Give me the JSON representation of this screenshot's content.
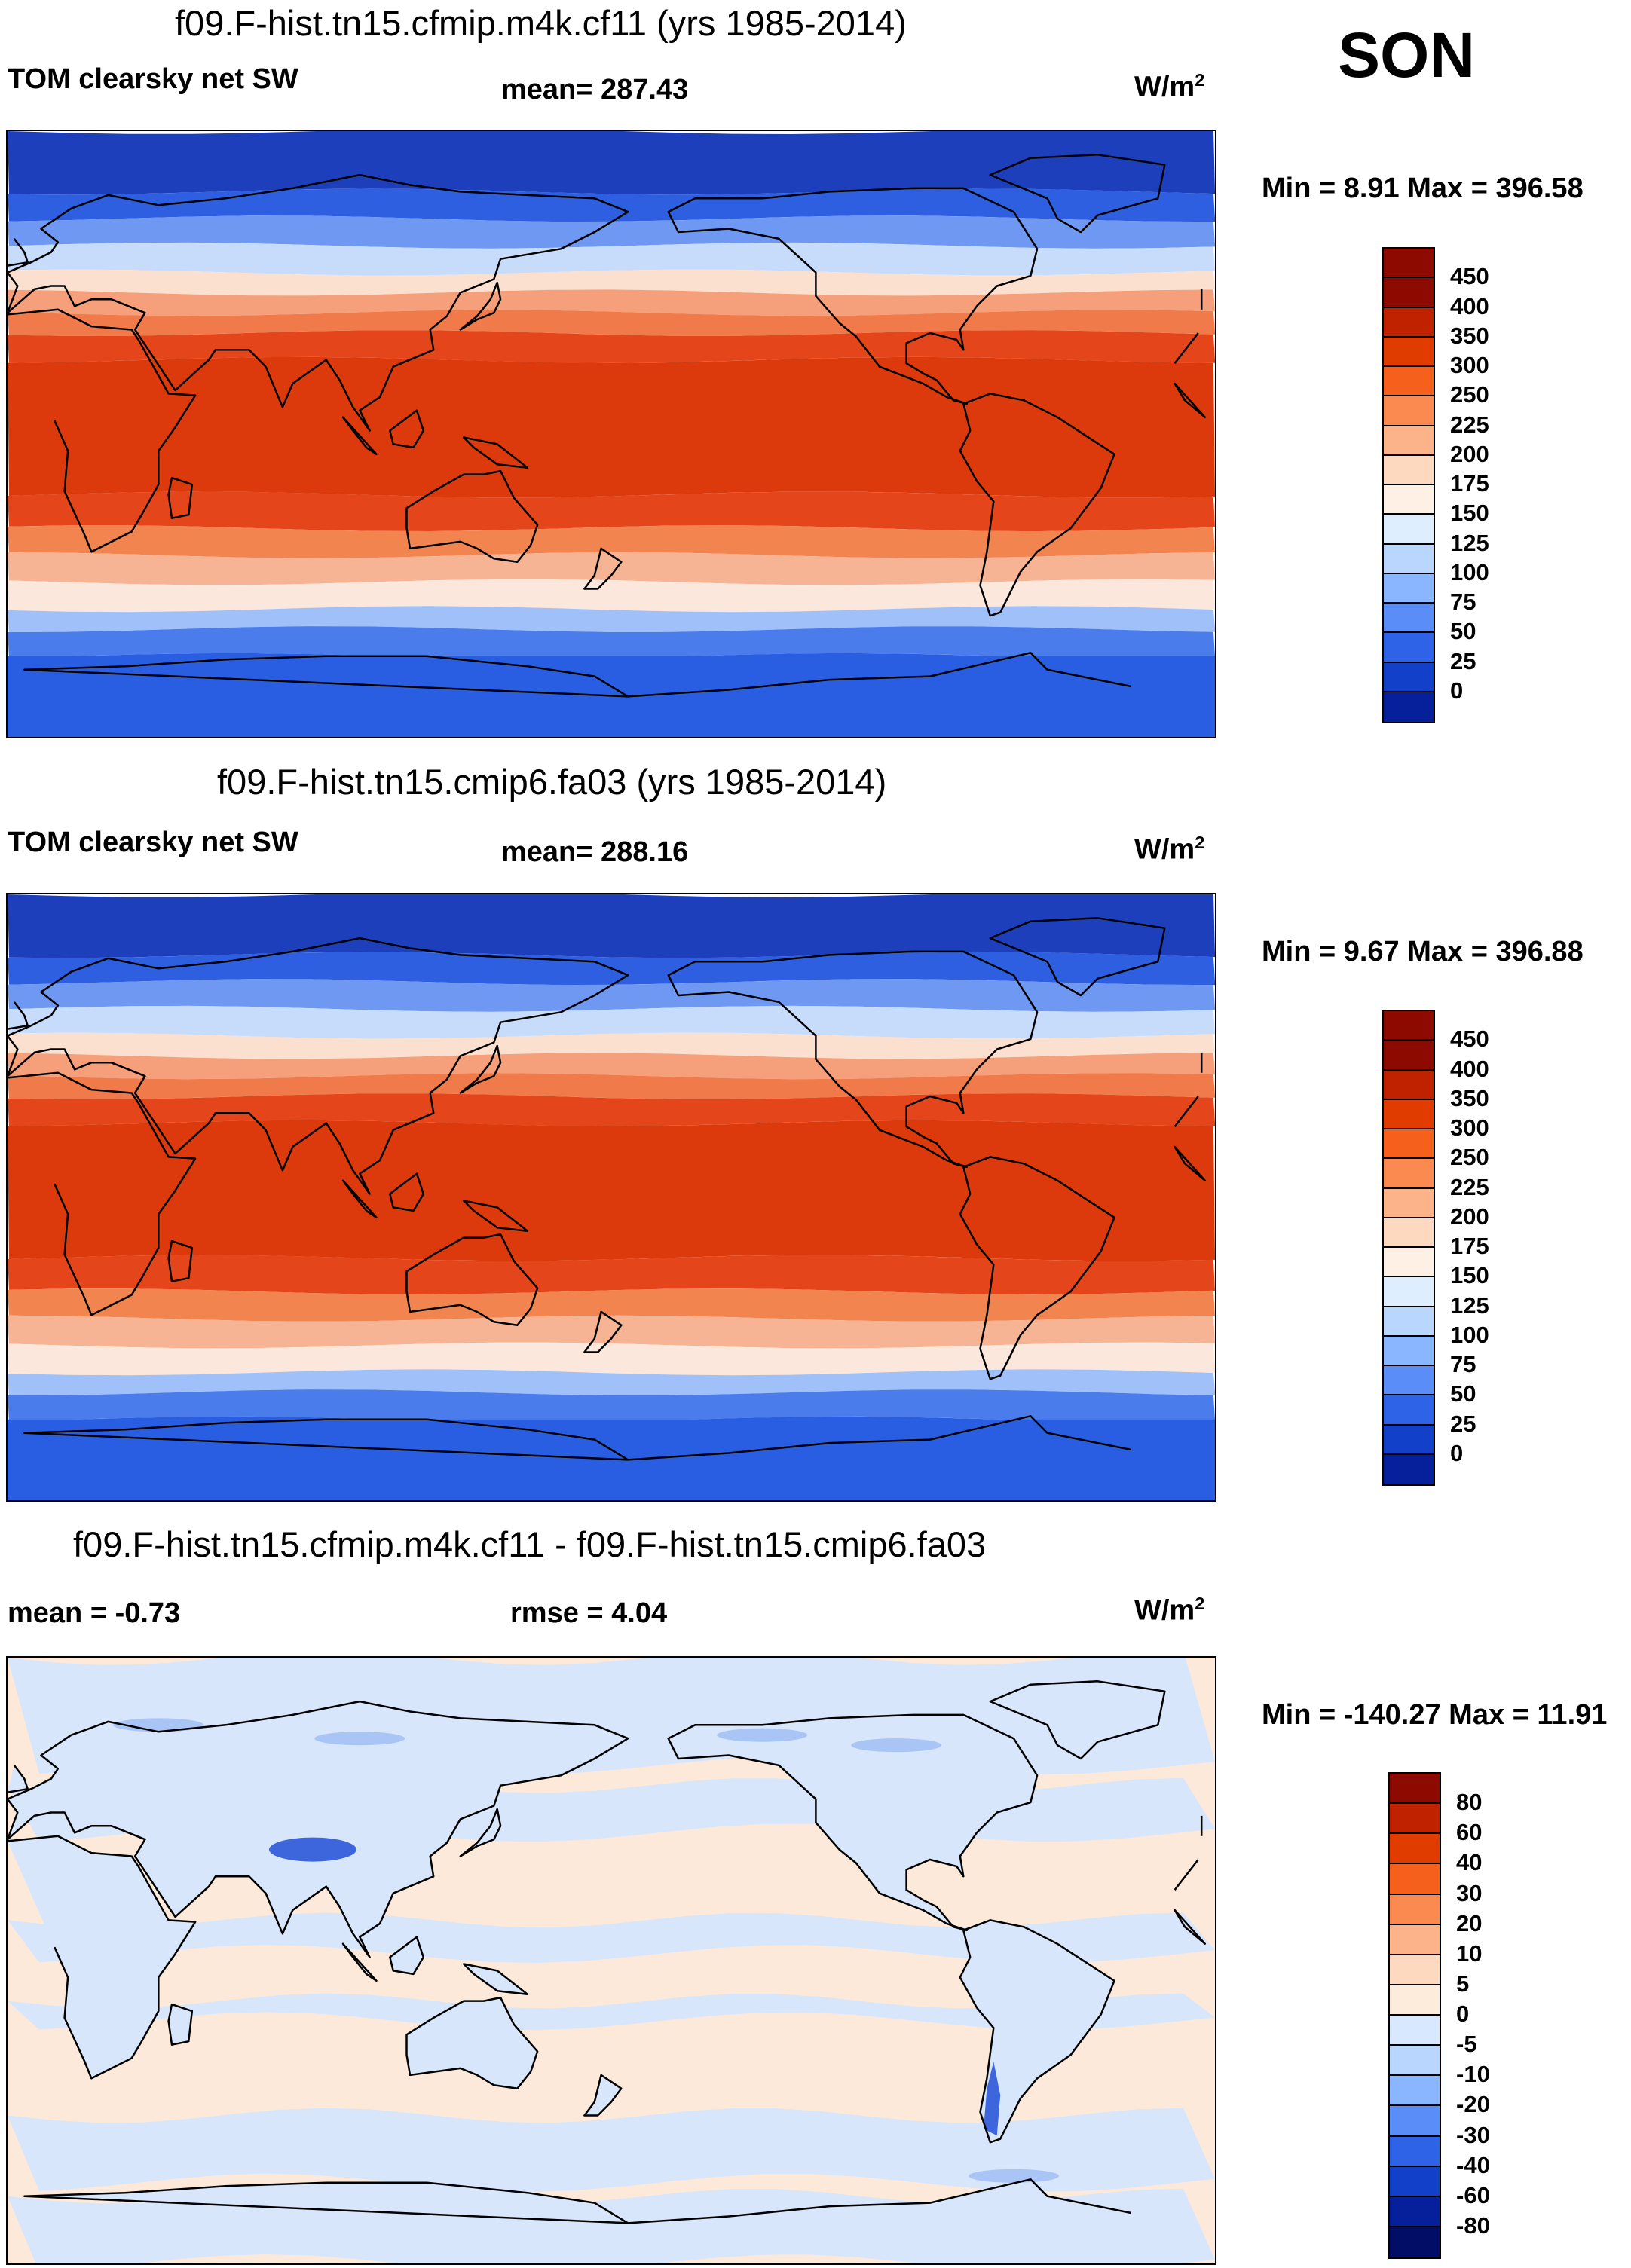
{
  "season": "SON",
  "units_base": "W/m",
  "units_exp": "2",
  "panels": [
    {
      "title": "f09.F-hist.tn15.cfmip.m4k.cf11 (yrs 1985-2014)",
      "variable": "TOM clearsky net SW",
      "stat1": "mean= 287.43",
      "stat2": "",
      "minmax": "Min =   8.91 Max = 396.58",
      "colorbar": {
        "labels": [
          "450",
          "400",
          "350",
          "300",
          "250",
          "225",
          "200",
          "175",
          "150",
          "125",
          "100",
          "75",
          "50",
          "25",
          "0"
        ],
        "colors": [
          "#8c0a00",
          "#c02200",
          "#e13c00",
          "#f5601c",
          "#fb8a50",
          "#fdb389",
          "#fdd9bf",
          "#fef0e4",
          "#dfeeff",
          "#b9d6ff",
          "#8ab5ff",
          "#5a8df7",
          "#2e63e7",
          "#1240c8",
          "#05209a"
        ]
      }
    },
    {
      "title": "f09.F-hist.tn15.cmip6.fa03 (yrs 1985-2014)",
      "variable": "TOM clearsky net SW",
      "stat1": "mean= 288.16",
      "stat2": "",
      "minmax": "Min =   9.67 Max = 396.88",
      "colorbar": {
        "labels": [
          "450",
          "400",
          "350",
          "300",
          "250",
          "225",
          "200",
          "175",
          "150",
          "125",
          "100",
          "75",
          "50",
          "25",
          "0"
        ],
        "colors": [
          "#8c0a00",
          "#c02200",
          "#e13c00",
          "#f5601c",
          "#fb8a50",
          "#fdb389",
          "#fdd9bf",
          "#fef0e4",
          "#dfeeff",
          "#b9d6ff",
          "#8ab5ff",
          "#5a8df7",
          "#2e63e7",
          "#1240c8",
          "#05209a"
        ]
      }
    },
    {
      "title": "f09.F-hist.tn15.cfmip.m4k.cf11 - f09.F-hist.tn15.cmip6.fa03",
      "variable": "mean =  -0.73",
      "stat1": "rmse =    4.04",
      "stat2": "",
      "minmax": "Min = -140.27 Max =  11.91",
      "colorbar": {
        "labels": [
          "80",
          "60",
          "40",
          "30",
          "20",
          "10",
          "5",
          "0",
          "-5",
          "-10",
          "-20",
          "-30",
          "-40",
          "-60",
          "-80"
        ],
        "colors": [
          "#8c0a00",
          "#c02200",
          "#e13c00",
          "#f5601c",
          "#fb8a50",
          "#fdb389",
          "#fdd9bf",
          "#fdebdc",
          "#d8e8ff",
          "#b9d6ff",
          "#8ab5ff",
          "#5a8df7",
          "#2e63e7",
          "#1240c8",
          "#05209a",
          "#020d66"
        ]
      }
    }
  ],
  "map_colors": {
    "panel1_bands": [
      "#1d3fbb",
      "#2d5fe0",
      "#6f98f2",
      "#c7dcfb",
      "#fbe0cf",
      "#f5a07a",
      "#f07a4a",
      "#e4451a",
      "#dc3a0c",
      "#e4451a",
      "#f2844f",
      "#f7b494",
      "#fbe7dc",
      "#9fc0f8",
      "#4a7cec",
      "#2a5ee2"
    ],
    "diff_background": "#fde9da",
    "diff_blue": "#d7e6fb",
    "diff_mid": "#a9c5f5",
    "diff_dark": "#3d66dc"
  }
}
